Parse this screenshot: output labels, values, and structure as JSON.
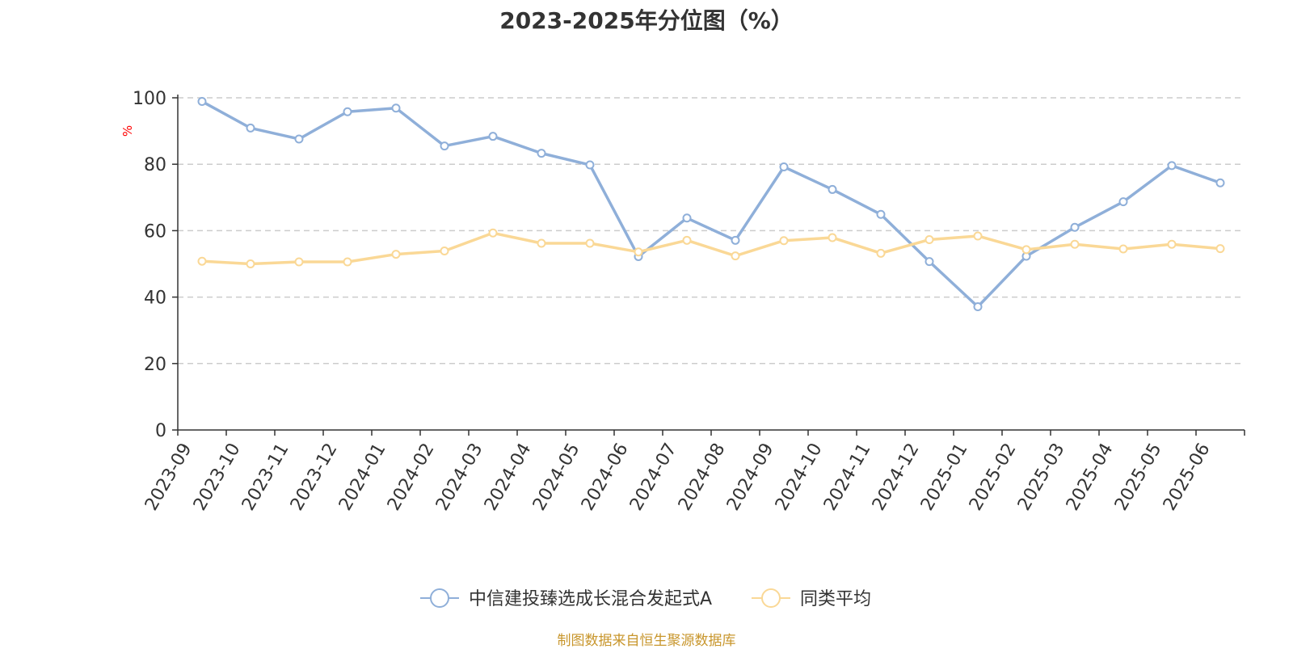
{
  "source_note": "制图数据来自恒生聚源数据库",
  "chart_data": {
    "type": "line",
    "title": "2023-2025年分位图（%）",
    "xlabel": "",
    "ylabel": "%",
    "ylim": [
      0,
      100
    ],
    "yticks": [
      0,
      20,
      40,
      60,
      80,
      100
    ],
    "grid": true,
    "legend_position": "bottom-center",
    "categories": [
      "2023-09",
      "2023-10",
      "2023-11",
      "2023-12",
      "2024-01",
      "2024-02",
      "2024-03",
      "2024-04",
      "2024-05",
      "2024-06",
      "2024-07",
      "2024-08",
      "2024-09",
      "2024-10",
      "2024-11",
      "2024-12",
      "2025-01",
      "2025-02",
      "2025-03",
      "2025-04",
      "2025-05",
      "2025-06"
    ],
    "series": [
      {
        "name": "中信建投臻选成长混合发起式A",
        "color": "#8fafd9",
        "values": [
          98.9,
          90.9,
          87.6,
          95.8,
          96.9,
          85.5,
          88.4,
          83.3,
          79.8,
          52.2,
          63.8,
          57.1,
          79.2,
          72.4,
          64.9,
          50.7,
          37.1,
          52.3,
          61.0,
          68.7,
          79.6,
          74.4
        ]
      },
      {
        "name": "同类平均",
        "color": "#fad896",
        "values": [
          50.8,
          50.0,
          50.6,
          50.6,
          52.9,
          53.9,
          59.3,
          56.2,
          56.2,
          53.6,
          57.1,
          52.4,
          57.0,
          57.9,
          53.2,
          57.3,
          58.4,
          54.3,
          55.9,
          54.5,
          55.9,
          54.6
        ]
      }
    ]
  }
}
